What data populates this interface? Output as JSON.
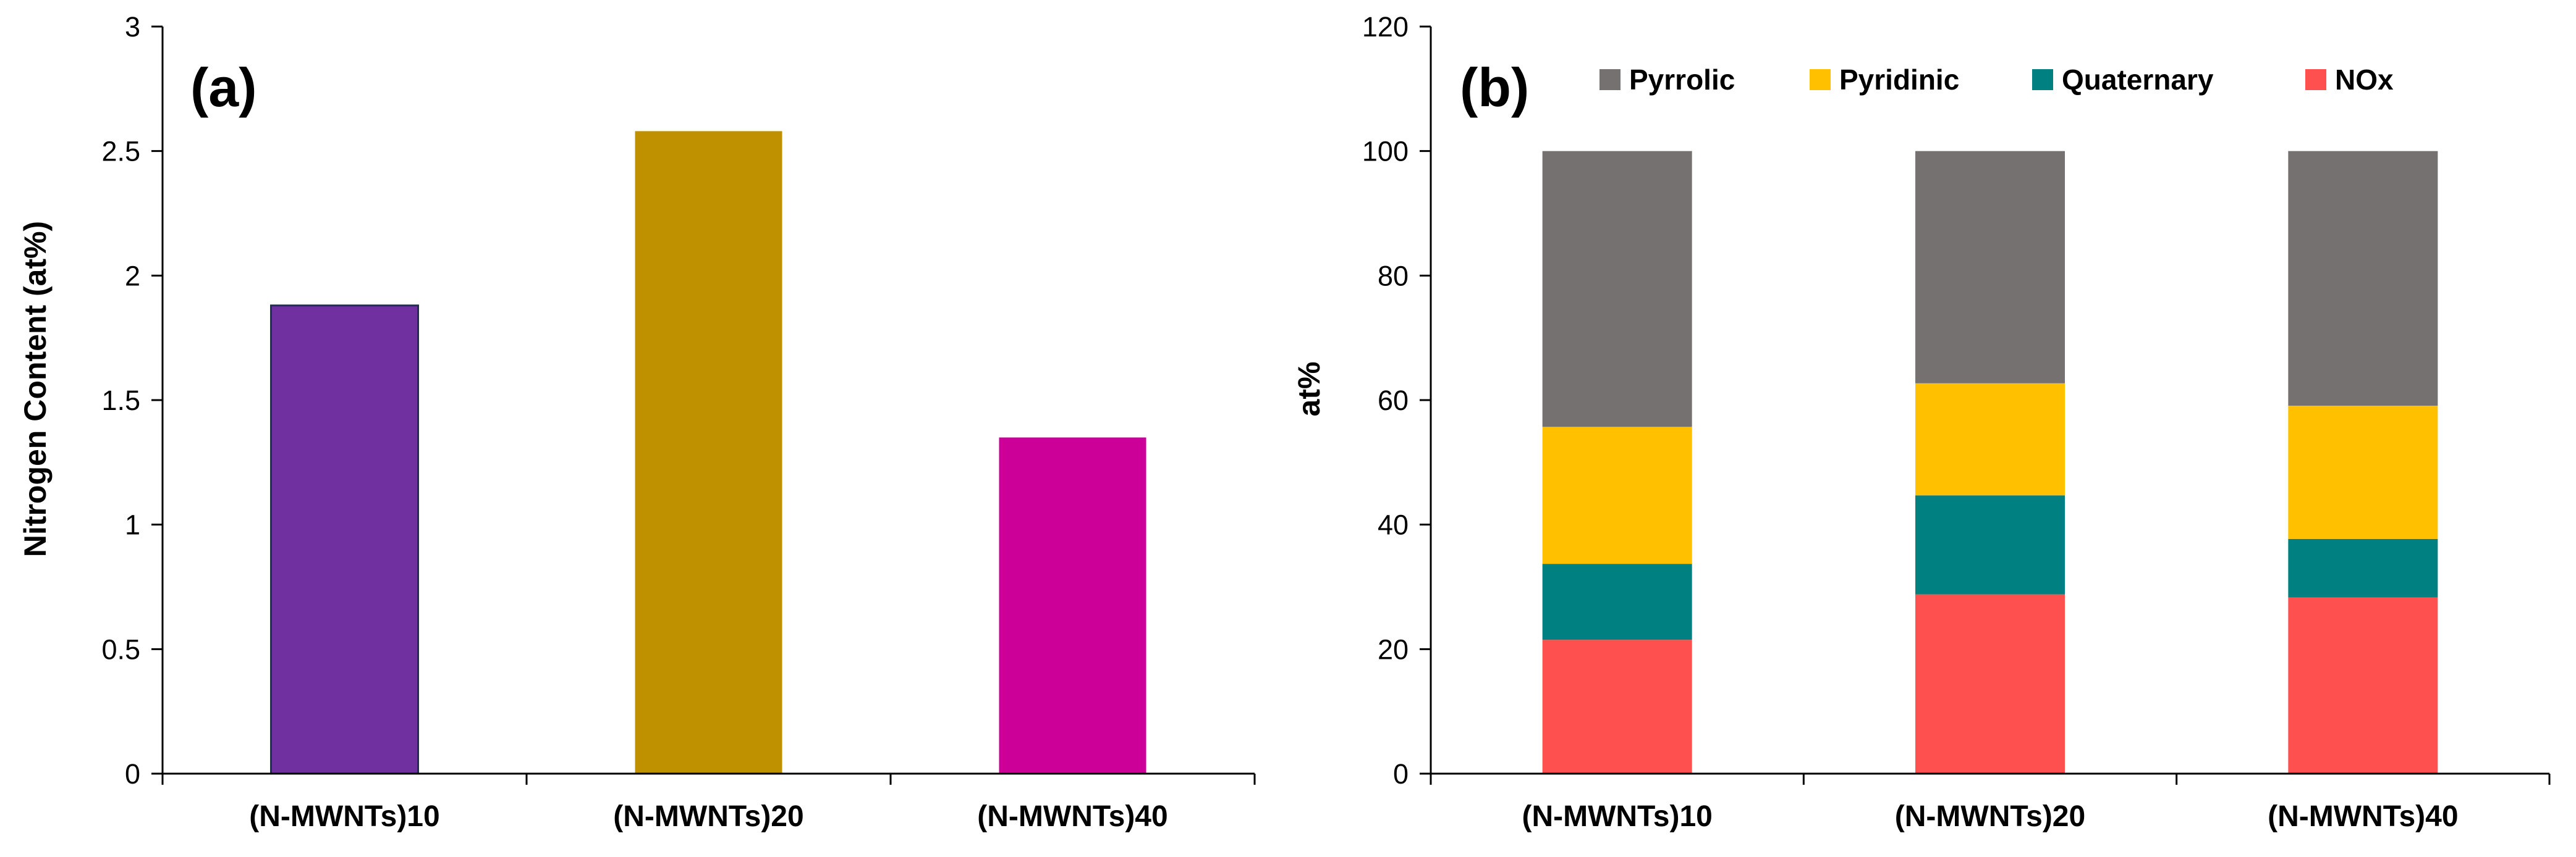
{
  "figure": {
    "label_a": "(a)",
    "label_b": "(b)"
  },
  "colors": {
    "axis": "#000000",
    "bar_outline_a0": "#1f2f4f",
    "pyrrolic": "#767171",
    "pyridinic": "#FFC000",
    "quaternary": "#008080",
    "nox": "#FF5050"
  },
  "chart_data": [
    {
      "type": "bar",
      "panel": "(a)",
      "title": "",
      "xlabel": "",
      "ylabel": "Nitrogen Content (at%)",
      "ylim": [
        0,
        3
      ],
      "yticks": [
        0,
        0.5,
        1,
        1.5,
        2,
        2.5,
        3
      ],
      "ytick_labels": [
        "0",
        "0.5",
        "1",
        "1.5",
        "2",
        "2.5",
        "3"
      ],
      "categories": [
        "(N-MWNTs)10",
        "(N-MWNTs)20",
        "(N-MWNTs)40"
      ],
      "values": [
        1.88,
        2.58,
        1.35
      ],
      "bar_colors": [
        "#7030A0",
        "#BF9000",
        "#CC0099"
      ],
      "grid": false
    },
    {
      "type": "bar",
      "stacked": true,
      "panel": "(b)",
      "title": "",
      "xlabel": "",
      "ylabel": "at%",
      "ylim": [
        0,
        120
      ],
      "yticks": [
        0,
        20,
        40,
        60,
        80,
        100,
        120
      ],
      "ytick_labels": [
        "0",
        "20",
        "40",
        "60",
        "80",
        "100",
        "120"
      ],
      "categories": [
        "(N-MWNTs)10",
        "(N-MWNTs)20",
        "(N-MWNTs)40"
      ],
      "legend_position": "top",
      "legend_order": [
        "Pyrrolic",
        "Pyridinic",
        "Quaternary",
        "NOx"
      ],
      "series": [
        {
          "name": "NOx",
          "color": "#FF5050",
          "values": [
            21.5,
            28.8,
            28.3
          ]
        },
        {
          "name": "Quaternary",
          "color": "#008080",
          "values": [
            12.2,
            15.9,
            9.4
          ]
        },
        {
          "name": "Pyridinic",
          "color": "#FFC000",
          "values": [
            22.0,
            18.0,
            21.4
          ]
        },
        {
          "name": "Pyrrolic",
          "color": "#767171",
          "values": [
            44.3,
            37.3,
            40.9
          ]
        }
      ],
      "grid": false
    }
  ]
}
